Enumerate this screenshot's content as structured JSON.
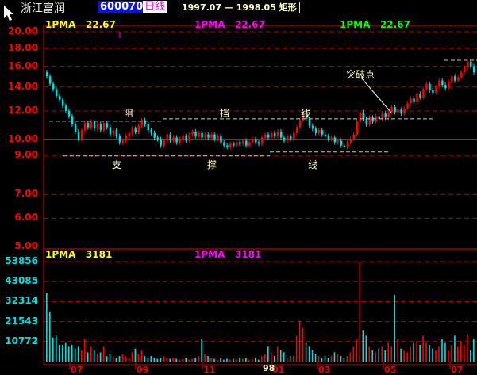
{
  "header": {
    "stock_name": "浙江富润",
    "stock_code": "600070",
    "period": "日线",
    "pattern_range": "1997.07 — 1998.05 矩形"
  },
  "price_legend": [
    {
      "label": "1PMA",
      "value": "22.67",
      "color": "#ffff00"
    },
    {
      "label": "1PMA",
      "value": "22.67",
      "color": "#ff00ff"
    },
    {
      "label": "1PMA",
      "value": "22.67",
      "color": "#00ff00"
    }
  ],
  "volume_legend": [
    {
      "label": "1PMA",
      "value": "3181",
      "color": "#ffff00"
    },
    {
      "label": "1PMA",
      "value": "3181",
      "color": "#ff00ff"
    }
  ],
  "annotations": {
    "resistance": [
      "阻",
      "挡",
      "线"
    ],
    "support": [
      "支",
      "撑",
      "线"
    ],
    "breakout": "突破点"
  },
  "colors": {
    "up": "#ff0000",
    "down": "#00e0e0",
    "grid": "#c00000",
    "axis_price": "#ff0000",
    "axis_volume": "#00e0e0",
    "pattern_lines": "#c8c8c8"
  },
  "chart_data": [
    {
      "type": "candlestick",
      "scale": "log",
      "ylim": [
        5,
        20
      ],
      "y_ticks": [
        "20.00",
        "18.00",
        "16.00",
        "14.00",
        "12.00",
        "10.00",
        "9.00",
        "7.00",
        "6.00",
        "5.00"
      ],
      "y_tick_values": [
        20,
        18,
        16,
        14,
        12,
        10,
        9,
        7,
        6,
        5
      ],
      "grid": true,
      "resistance_level": 11.4,
      "support_level": 9.2,
      "open": [
        15.4,
        15.0,
        14.3,
        13.8,
        13.2,
        12.9,
        12.4,
        12.0,
        11.6,
        11.0,
        10.5,
        10.0,
        10.6,
        11.1,
        10.8,
        11.2,
        10.7,
        11.0,
        10.6,
        11.1,
        10.8,
        10.3,
        10.6,
        10.2,
        9.8,
        9.9,
        10.2,
        10.4,
        10.7,
        10.5,
        10.9,
        11.3,
        11.0,
        10.6,
        10.4,
        10.1,
        10.0,
        9.6,
        9.9,
        10.3,
        9.9,
        10.1,
        9.8,
        10.0,
        10.2,
        9.9,
        10.3,
        10.5,
        10.2,
        10.4,
        10.1,
        10.3,
        10.1,
        10.3,
        10.0,
        10.2,
        9.8,
        9.6,
        9.5,
        9.7,
        9.6,
        9.8,
        9.7,
        9.9,
        9.6,
        9.8,
        10.0,
        9.8,
        9.7,
        10.1,
        10.3,
        10.1,
        10.4,
        10.2,
        10.5,
        10.1,
        9.9,
        10.2,
        10.0,
        10.4,
        10.8,
        11.3,
        11.8,
        11.4,
        10.9,
        10.7,
        10.4,
        10.6,
        10.3,
        10.2,
        10.0,
        10.1,
        9.8,
        9.9,
        9.6,
        9.5,
        9.8,
        10.0,
        10.3,
        11.2,
        11.9,
        11.4,
        11.0,
        11.5,
        11.2,
        11.6,
        11.4,
        11.8,
        11.5,
        11.9,
        12.3,
        11.9,
        12.1,
        11.8,
        12.2,
        12.6,
        13.0,
        12.7,
        13.4,
        13.1,
        13.8,
        14.3,
        13.7,
        13.5,
        14.0,
        14.6,
        14.2,
        13.9,
        14.5,
        15.0,
        14.6,
        14.9,
        15.4,
        15.9,
        16.5,
        16.0
      ],
      "close": [
        15.0,
        14.3,
        13.8,
        13.2,
        12.9,
        12.4,
        12.0,
        11.6,
        11.0,
        10.5,
        10.0,
        10.6,
        11.1,
        10.8,
        11.2,
        10.7,
        11.0,
        10.6,
        11.1,
        10.8,
        10.3,
        10.6,
        10.2,
        9.8,
        9.9,
        10.2,
        10.4,
        10.7,
        10.5,
        10.9,
        11.3,
        11.0,
        10.6,
        10.4,
        10.1,
        10.0,
        9.6,
        9.9,
        10.3,
        9.9,
        10.1,
        9.8,
        10.0,
        10.2,
        9.9,
        10.3,
        10.5,
        10.2,
        10.4,
        10.1,
        10.3,
        10.1,
        10.3,
        10.0,
        10.2,
        9.8,
        9.6,
        9.5,
        9.7,
        9.6,
        9.8,
        9.7,
        9.9,
        9.6,
        9.8,
        10.0,
        9.8,
        9.7,
        10.1,
        10.3,
        10.1,
        10.4,
        10.2,
        10.5,
        10.1,
        9.9,
        10.2,
        10.0,
        10.4,
        10.8,
        11.3,
        11.8,
        11.4,
        10.9,
        10.7,
        10.4,
        10.6,
        10.3,
        10.2,
        10.0,
        10.1,
        9.8,
        9.9,
        9.6,
        9.5,
        9.8,
        10.0,
        10.3,
        11.2,
        11.9,
        11.4,
        11.0,
        11.5,
        11.2,
        11.6,
        11.4,
        11.8,
        11.5,
        11.9,
        12.3,
        11.9,
        12.1,
        11.8,
        12.2,
        12.6,
        13.0,
        12.7,
        13.4,
        13.1,
        13.8,
        14.3,
        13.7,
        13.5,
        14.0,
        14.6,
        14.2,
        13.9,
        14.5,
        15.0,
        14.6,
        14.9,
        15.4,
        15.9,
        16.5,
        16.0,
        15.4
      ]
    },
    {
      "type": "bar",
      "y_ticks": [
        "53856",
        "43085",
        "32314",
        "21543",
        "10772"
      ],
      "y_tick_values": [
        53856,
        43085,
        32314,
        21543,
        10772
      ],
      "ylim": [
        0,
        53856
      ],
      "grid": true,
      "x_ticks": [
        "07",
        "09",
        "11",
        "01",
        "03",
        "05",
        "07"
      ],
      "year_label": "98",
      "values": [
        37000,
        27000,
        13000,
        14000,
        9000,
        9000,
        10000,
        8000,
        9000,
        7000,
        8000,
        6000,
        12000,
        5000,
        8000,
        6000,
        4000,
        5000,
        8000,
        3000,
        4000,
        3000,
        2000,
        3000,
        4000,
        3000,
        2000,
        5000,
        7000,
        4000,
        6000,
        3000,
        2000,
        3000,
        2000,
        1500,
        2000,
        3000,
        2000,
        1500,
        2000,
        1500,
        1000,
        1500,
        2000,
        1000,
        1500,
        2000,
        3000,
        12000,
        4000,
        3000,
        2000,
        1500,
        1000,
        2000,
        1000,
        1500,
        1000,
        1500,
        1000,
        2000,
        1500,
        2000,
        1000,
        1500,
        2000,
        1000,
        3000,
        4000,
        8000,
        5000,
        3000,
        8000,
        6000,
        5000,
        2000,
        3000,
        3000,
        14000,
        22000,
        18000,
        10000,
        8000,
        6000,
        4000,
        3000,
        2000,
        3000,
        2000,
        3000,
        5000,
        4000,
        3000,
        2000,
        3000,
        5000,
        8000,
        12000,
        53856,
        17000,
        14000,
        8000,
        6000,
        5000,
        7000,
        8000,
        6000,
        10000,
        8000,
        36000,
        12000,
        7000,
        6000,
        5000,
        8000,
        10000,
        11000,
        9000,
        14000,
        10000,
        9000,
        7000,
        6000,
        8000,
        12000,
        10000,
        6000,
        9000,
        14000,
        8000,
        11000,
        9000,
        15000,
        6000,
        12000
      ]
    }
  ]
}
